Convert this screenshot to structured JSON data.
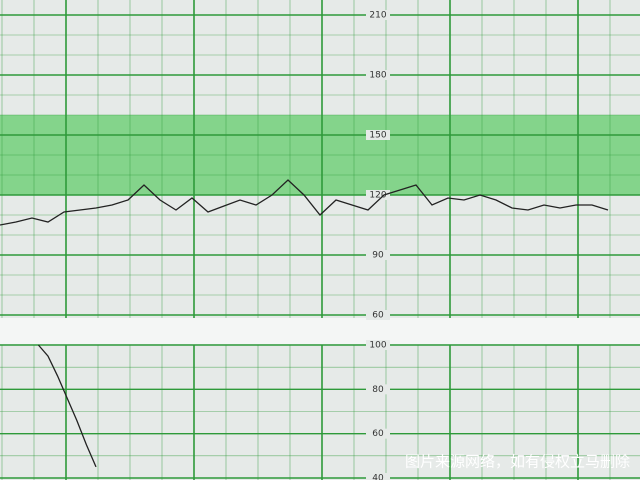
{
  "chart_data": [
    {
      "type": "line",
      "color": "#222222",
      "grid_color": "#2e9a3a",
      "band_color": "#72d07a",
      "normal_band": [
        120,
        160
      ],
      "ylim": [
        60,
        210
      ],
      "yticks": [
        60,
        90,
        120,
        150,
        180,
        210
      ],
      "xlim": [
        0,
        100
      ],
      "x": [
        0,
        2.5,
        5,
        7.5,
        10,
        12.5,
        15,
        17.5,
        20,
        22.5,
        25,
        27.5,
        30,
        32.5,
        35,
        37.5,
        40,
        42.5,
        45,
        47.5,
        50,
        52.5,
        55,
        57.5,
        60,
        62.5,
        65,
        67.5,
        70,
        72.5,
        75,
        77.5,
        80,
        82.5,
        85,
        87.5,
        90,
        92.5,
        95
      ],
      "values": [
        105,
        106.5,
        108.5,
        106.5,
        111.5,
        112.5,
        113.5,
        115,
        117.5,
        125,
        117.5,
        112.5,
        118.5,
        111.5,
        114.5,
        117.5,
        115,
        120,
        127.5,
        120,
        110,
        117.5,
        115,
        112.5,
        120,
        122.5,
        125,
        115,
        118.5,
        117.5,
        120,
        117.5,
        113.5,
        112.5,
        115,
        113.5,
        115,
        115,
        112.5
      ]
    },
    {
      "type": "line",
      "color": "#222222",
      "grid_color": "#2e9a3a",
      "ylim": [
        40,
        100
      ],
      "yticks": [
        40,
        60,
        80,
        100
      ],
      "xlim": [
        0,
        100
      ],
      "x": [
        6,
        7.5,
        9,
        10.5,
        12,
        13.5,
        15
      ],
      "values": [
        100,
        95,
        86,
        76,
        66,
        55,
        45
      ]
    }
  ],
  "watermark": "图片来源网络，如有侵权立马删除"
}
